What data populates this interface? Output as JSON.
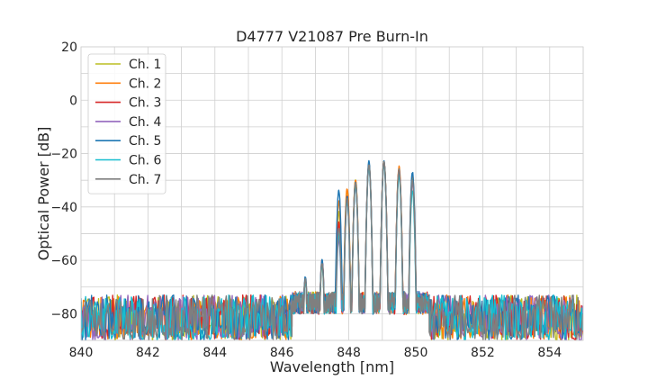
{
  "chart_data": {
    "type": "line",
    "title": "D4777 V21087 Pre Burn-In",
    "xlabel": "Wavelength [nm]",
    "ylabel": "Optical Power [dB]",
    "xlim": [
      840,
      855
    ],
    "ylim": [
      -90,
      20
    ],
    "x_ticks": [
      840,
      842,
      844,
      846,
      848,
      850,
      852,
      854
    ],
    "y_ticks": [
      20,
      0,
      -20,
      -40,
      -60,
      -80
    ],
    "x_tick_labels": [
      "840",
      "842",
      "844",
      "846",
      "848",
      "850",
      "852",
      "854"
    ],
    "y_tick_labels": [
      "20",
      "0",
      "−20",
      "−40",
      "−60",
      "−80"
    ],
    "grid": true,
    "legend_position": "top-left",
    "noise_floor": {
      "level": -80,
      "low": -90,
      "high": -73,
      "left_end": 846.3,
      "right_start": 850.4
    },
    "series": [
      {
        "name": "Ch. 1",
        "color": "#bcbd22",
        "peaks": [
          [
            846.7,
            -68
          ],
          [
            847.2,
            -62
          ],
          [
            847.7,
            -42
          ],
          [
            847.95,
            -34
          ],
          [
            848.2,
            -30
          ],
          [
            848.6,
            -24
          ],
          [
            849.05,
            -23
          ],
          [
            849.5,
            -26
          ],
          [
            849.9,
            -30
          ]
        ]
      },
      {
        "name": "Ch. 2",
        "color": "#ff7f0e",
        "peaks": [
          [
            846.7,
            -67
          ],
          [
            847.2,
            -61
          ],
          [
            847.7,
            -38
          ],
          [
            847.95,
            -33
          ],
          [
            848.2,
            -30
          ],
          [
            848.6,
            -24
          ],
          [
            849.05,
            -23
          ],
          [
            849.5,
            -25
          ],
          [
            849.9,
            -28
          ]
        ]
      },
      {
        "name": "Ch. 3",
        "color": "#d62728",
        "peaks": [
          [
            846.7,
            -67
          ],
          [
            847.2,
            -60
          ],
          [
            847.7,
            -46
          ],
          [
            847.95,
            -36
          ],
          [
            848.2,
            -31
          ],
          [
            848.6,
            -24
          ],
          [
            849.05,
            -23
          ],
          [
            849.5,
            -26
          ],
          [
            849.9,
            -30
          ]
        ]
      },
      {
        "name": "Ch. 4",
        "color": "#9467bd",
        "peaks": [
          [
            846.7,
            -68
          ],
          [
            847.2,
            -61
          ],
          [
            847.7,
            -52
          ],
          [
            847.95,
            -38
          ],
          [
            848.2,
            -32
          ],
          [
            848.6,
            -25
          ],
          [
            849.05,
            -24
          ],
          [
            849.5,
            -27
          ],
          [
            849.9,
            -31
          ]
        ]
      },
      {
        "name": "Ch. 5",
        "color": "#1f77b4",
        "peaks": [
          [
            846.7,
            -66
          ],
          [
            847.2,
            -60
          ],
          [
            847.7,
            -34
          ],
          [
            847.95,
            -36
          ],
          [
            848.2,
            -31
          ],
          [
            848.6,
            -23
          ],
          [
            849.05,
            -23
          ],
          [
            849.5,
            -27
          ],
          [
            849.9,
            -27
          ]
        ]
      },
      {
        "name": "Ch. 6",
        "color": "#17becf",
        "peaks": [
          [
            846.7,
            -68
          ],
          [
            847.2,
            -62
          ],
          [
            847.7,
            -50
          ],
          [
            847.95,
            -38
          ],
          [
            848.2,
            -32
          ],
          [
            848.6,
            -25
          ],
          [
            849.05,
            -24
          ],
          [
            849.5,
            -28
          ],
          [
            849.9,
            -34
          ]
        ]
      },
      {
        "name": "Ch. 7",
        "color": "#7f7f7f",
        "peaks": [
          [
            846.7,
            -67
          ],
          [
            847.2,
            -61
          ],
          [
            847.7,
            -48
          ],
          [
            847.95,
            -37
          ],
          [
            848.2,
            -31
          ],
          [
            848.6,
            -24
          ],
          [
            849.05,
            -23
          ],
          [
            849.5,
            -26
          ],
          [
            849.9,
            -30
          ]
        ]
      }
    ]
  }
}
